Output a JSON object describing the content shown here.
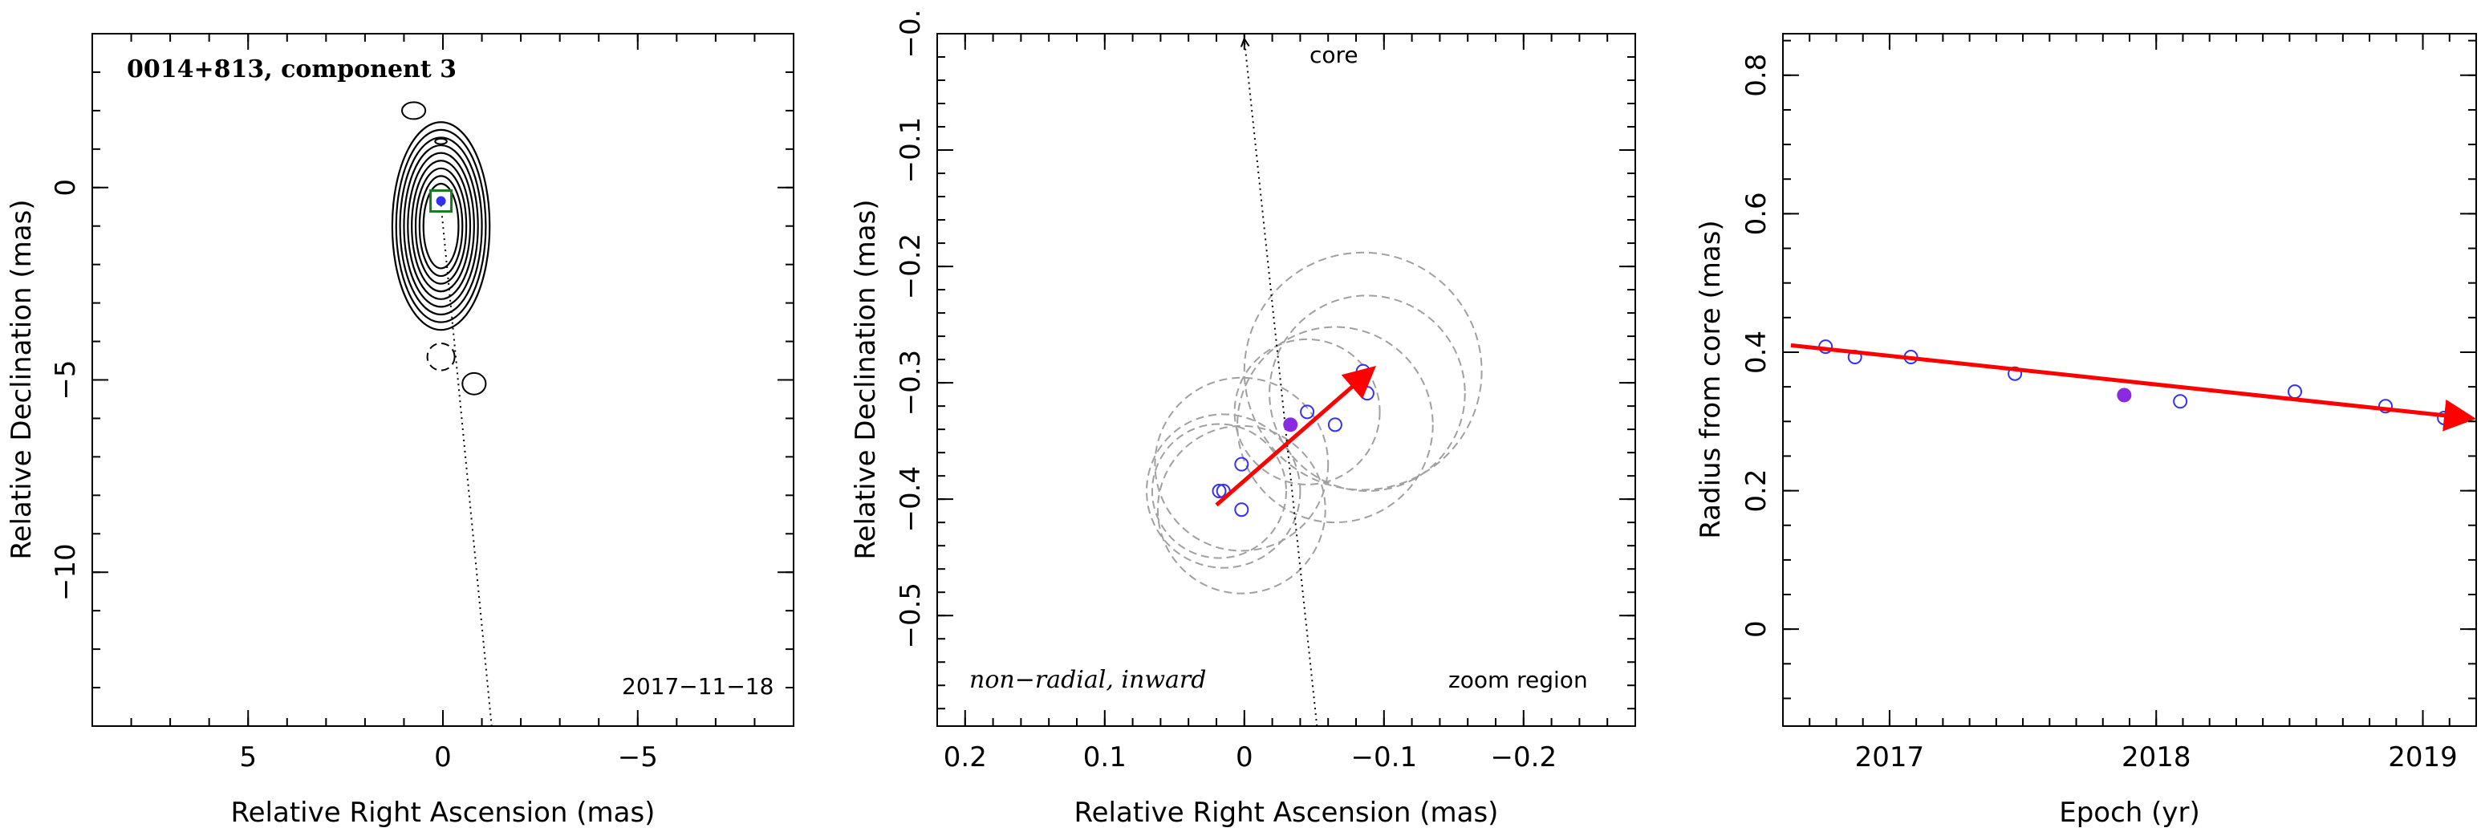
{
  "colors": {
    "axis": "#000000",
    "trend": "#ff0000",
    "points": "#3333ee",
    "highlight": "#8a2be2",
    "circles": "#a0a0a0",
    "marker_box": "#1a7a1a",
    "contours": "#000000"
  },
  "chart_data": [
    {
      "type": "contour-map",
      "title": "0014+813, component 3",
      "date_label": "2017−11−18",
      "xlabel": "Relative Right Ascension (mas)",
      "ylabel": "Relative Declination (mas)",
      "xlim": [
        9,
        -9
      ],
      "ylim": [
        -14,
        4
      ],
      "xticks": [
        5,
        0,
        -5
      ],
      "xtick_labels": [
        "5",
        "0",
        "−5"
      ],
      "yticks": [
        0,
        -5,
        -10
      ],
      "ytick_labels": [
        "0",
        "−5",
        "−10"
      ],
      "core_track": {
        "x": [
          0.05,
          -1.25
        ],
        "y": [
          -0.45,
          -14
        ]
      },
      "component": {
        "x": 0.05,
        "y": -0.35
      },
      "contours": {
        "center": [
          0.05,
          -1.0
        ],
        "radii_x": [
          1.25,
          1.15,
          1.05,
          0.95,
          0.85,
          0.75,
          0.65,
          0.55,
          0.45
        ],
        "radii_y": [
          2.7,
          2.5,
          2.3,
          2.1,
          1.9,
          1.7,
          1.5,
          1.3,
          1.1
        ]
      },
      "blobs": [
        {
          "x": 0.75,
          "y": 2.0,
          "rx": 0.3,
          "ry": 0.22,
          "dashed": false
        },
        {
          "x": 0.05,
          "y": -4.4,
          "rx": 0.35,
          "ry": 0.35,
          "dashed": true
        },
        {
          "x": -0.8,
          "y": -5.1,
          "rx": 0.3,
          "ry": 0.28,
          "dashed": false
        },
        {
          "x": 0.05,
          "y": 1.2,
          "rx": 0.15,
          "ry": 0.07,
          "dashed": false
        }
      ]
    },
    {
      "type": "scatter",
      "xlabel": "Relative Right Ascension (mas)",
      "ylabel": "Relative Declination (mas)",
      "annotation_left": "non−radial, inward",
      "annotation_right": "zoom region",
      "core_label": "core",
      "xlim": [
        0.22,
        -0.28
      ],
      "ylim": [
        -0.595,
        0.0
      ],
      "xticks": [
        0.2,
        0.1,
        0,
        -0.1,
        -0.2
      ],
      "xtick_labels": [
        "0.2",
        "0.1",
        "0",
        "−0.1",
        "−0.2"
      ],
      "yticks": [
        0.0,
        -0.1,
        -0.2,
        -0.3,
        -0.4,
        -0.5
      ],
      "ytick_labels": [
        "−0.",
        "−0.1",
        "−0.2",
        "−0.3",
        "−0.4",
        "−0.5"
      ],
      "core_arrow": {
        "x": [
          -0.052,
          0.0
        ],
        "y": [
          -0.595,
          -0.005
        ]
      },
      "points": {
        "x": [
          0.018,
          0.015,
          0.002,
          0.002,
          -0.045,
          -0.065,
          -0.085,
          -0.088
        ],
        "y": [
          -0.393,
          -0.393,
          -0.37,
          -0.409,
          -0.325,
          -0.336,
          -0.29,
          -0.309
        ]
      },
      "highlight": {
        "x": -0.033,
        "y": -0.336
      },
      "circles": {
        "x": [
          0.018,
          0.015,
          0.002,
          0.002,
          -0.045,
          -0.065,
          -0.085,
          -0.088
        ],
        "y": [
          -0.393,
          -0.393,
          -0.37,
          -0.409,
          -0.325,
          -0.336,
          -0.29,
          -0.309
        ],
        "r": [
          0.048,
          0.055,
          0.062,
          0.06,
          0.052,
          0.07,
          0.085,
          0.07
        ]
      },
      "trend": {
        "x": [
          0.02,
          -0.09
        ],
        "y": [
          -0.405,
          -0.29
        ]
      }
    },
    {
      "type": "scatter",
      "xlabel": "Epoch (yr)",
      "ylabel": "Radius from core (mas)",
      "xlim": [
        2016.6,
        2019.2
      ],
      "ylim": [
        -0.14,
        0.86
      ],
      "xticks": [
        2017,
        2018,
        2019
      ],
      "xtick_labels": [
        "2017",
        "2018",
        "2019"
      ],
      "yticks": [
        0,
        0.2,
        0.4,
        0.6,
        0.8
      ],
      "ytick_labels": [
        "0",
        "0.2",
        "0.4",
        "0.6",
        "0.8"
      ],
      "points": {
        "x": [
          2016.76,
          2016.87,
          2017.08,
          2017.47,
          2018.09,
          2018.52,
          2018.86,
          2019.08
        ],
        "y": [
          0.408,
          0.393,
          0.393,
          0.369,
          0.329,
          0.343,
          0.322,
          0.305
        ]
      },
      "highlight": {
        "x": 2017.88,
        "y": 0.338
      },
      "trend": {
        "x": [
          2016.63,
          2019.17
        ],
        "y": [
          0.41,
          0.305
        ]
      }
    }
  ]
}
